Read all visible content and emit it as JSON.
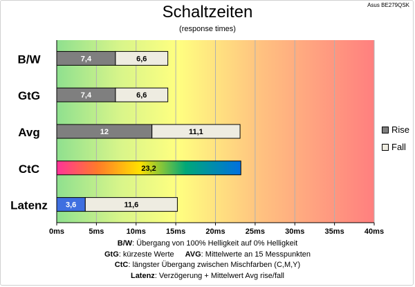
{
  "header": {
    "model": "Asus BE279QSK"
  },
  "chart_data": {
    "type": "bar",
    "orientation": "horizontal",
    "stacked": true,
    "title": "Schaltzeiten",
    "subtitle": "(response times)",
    "categories": [
      "B/W",
      "GtG",
      "Avg",
      "CtC",
      "Latenz"
    ],
    "series": [
      {
        "name": "Rise",
        "values": [
          7.4,
          7.4,
          12,
          null,
          3.6
        ],
        "labels": [
          "7,4",
          "7,4",
          "12",
          "",
          "3,6"
        ]
      },
      {
        "name": "Fall",
        "values": [
          6.6,
          6.6,
          11.1,
          null,
          11.6
        ],
        "labels": [
          "6,6",
          "6,6",
          "11,1",
          "",
          "11,6"
        ]
      },
      {
        "values": [
          null,
          null,
          null,
          23.2,
          null
        ],
        "labels": [
          "",
          "",
          "",
          "23,2",
          ""
        ]
      }
    ],
    "xlim": [
      0,
      40
    ],
    "xticks": [
      0,
      5,
      10,
      15,
      20,
      25,
      30,
      35,
      40
    ],
    "xtick_labels": [
      "0ms",
      "5ms",
      "10ms",
      "15ms",
      "20ms",
      "25ms",
      "30ms",
      "35ms",
      "40ms"
    ],
    "grid": true,
    "legend": "right",
    "colors": {
      "rise": "#7f7f7f",
      "fall": "#eeece1",
      "latency_rise": "#3f6fe0",
      "bg_green": "#8fe08f",
      "bg_yellow": "#ffff80",
      "bg_red": "#ff7f7f"
    }
  },
  "notes": {
    "line1_label": "B/W",
    "line1_text": ":  Übergang von 100% Helligkeit auf 0% Helligkeit",
    "line2_label_a": "GtG",
    "line2_text_a": ": kürzeste  Werte",
    "line2_label_b": "AVG",
    "line2_text_b": ": Mittelwerte  an 15 Messpunkten",
    "line3_label": "CtC",
    "line3_text": ": längster Übergang  zwischen Mischfarben (C,M,Y)",
    "line4_label": "Latenz",
    "line4_text": ": Verzögerung  + Mittelwert  Avg rise/fall"
  }
}
